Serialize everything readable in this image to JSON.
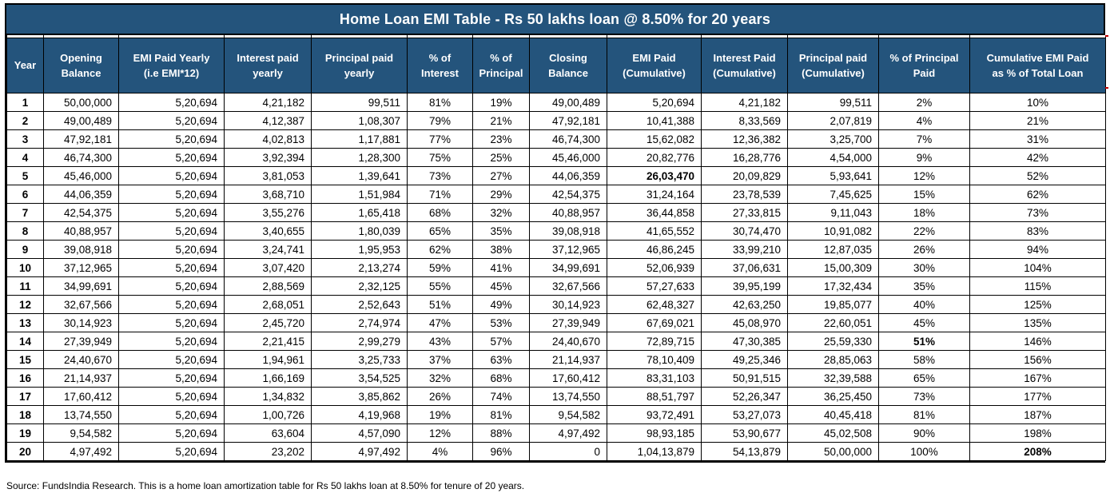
{
  "title": "Home Loan EMI Table - Rs 50 lakhs loan @ 8.50% for 20 years",
  "source_note": "Source: FundsIndia Research. This is a home loan amortization table for Rs 50 lakhs loan at 8.50% for tenure of 20 years.",
  "colors": {
    "header_bg": "#24547C",
    "header_text": "#FFFFFF",
    "year_text": "#44546A",
    "body_text": "#000000",
    "border": "#000000",
    "edge_artifact": "#C00000"
  },
  "chart_data": {
    "type": "table",
    "columns": [
      {
        "label": "Year"
      },
      {
        "label": "Opening\nBalance"
      },
      {
        "label": "EMI Paid Yearly\n(i.e EMI*12)"
      },
      {
        "label": "Interest paid\nyearly"
      },
      {
        "label": "Principal paid\nyearly"
      },
      {
        "label": "% of\nInterest"
      },
      {
        "label": "% of\nPrincipal"
      },
      {
        "label": "Closing\nBalance"
      },
      {
        "label": "EMI Paid\n(Cumulative)"
      },
      {
        "label": "Interest Paid\n(Cumulative)"
      },
      {
        "label": "Principal paid\n(Cumulative)"
      },
      {
        "label": "% of Principal\nPaid"
      },
      {
        "label": "Cumulative EMI Paid\nas % of Total Loan"
      }
    ],
    "rows": [
      [
        "1",
        "50,00,000",
        "5,20,694",
        "4,21,182",
        "99,511",
        "81%",
        "19%",
        "49,00,489",
        "5,20,694",
        "4,21,182",
        "99,511",
        "2%",
        "10%"
      ],
      [
        "2",
        "49,00,489",
        "5,20,694",
        "4,12,387",
        "1,08,307",
        "79%",
        "21%",
        "47,92,181",
        "10,41,388",
        "8,33,569",
        "2,07,819",
        "4%",
        "21%"
      ],
      [
        "3",
        "47,92,181",
        "5,20,694",
        "4,02,813",
        "1,17,881",
        "77%",
        "23%",
        "46,74,300",
        "15,62,082",
        "12,36,382",
        "3,25,700",
        "7%",
        "31%"
      ],
      [
        "4",
        "46,74,300",
        "5,20,694",
        "3,92,394",
        "1,28,300",
        "75%",
        "25%",
        "45,46,000",
        "20,82,776",
        "16,28,776",
        "4,54,000",
        "9%",
        "42%"
      ],
      [
        "5",
        "45,46,000",
        "5,20,694",
        "3,81,053",
        "1,39,641",
        "73%",
        "27%",
        "44,06,359",
        "26,03,470",
        "20,09,829",
        "5,93,641",
        "12%",
        "52%"
      ],
      [
        "6",
        "44,06,359",
        "5,20,694",
        "3,68,710",
        "1,51,984",
        "71%",
        "29%",
        "42,54,375",
        "31,24,164",
        "23,78,539",
        "7,45,625",
        "15%",
        "62%"
      ],
      [
        "7",
        "42,54,375",
        "5,20,694",
        "3,55,276",
        "1,65,418",
        "68%",
        "32%",
        "40,88,957",
        "36,44,858",
        "27,33,815",
        "9,11,043",
        "18%",
        "73%"
      ],
      [
        "8",
        "40,88,957",
        "5,20,694",
        "3,40,655",
        "1,80,039",
        "65%",
        "35%",
        "39,08,918",
        "41,65,552",
        "30,74,470",
        "10,91,082",
        "22%",
        "83%"
      ],
      [
        "9",
        "39,08,918",
        "5,20,694",
        "3,24,741",
        "1,95,953",
        "62%",
        "38%",
        "37,12,965",
        "46,86,245",
        "33,99,210",
        "12,87,035",
        "26%",
        "94%"
      ],
      [
        "10",
        "37,12,965",
        "5,20,694",
        "3,07,420",
        "2,13,274",
        "59%",
        "41%",
        "34,99,691",
        "52,06,939",
        "37,06,631",
        "15,00,309",
        "30%",
        "104%"
      ],
      [
        "11",
        "34,99,691",
        "5,20,694",
        "2,88,569",
        "2,32,125",
        "55%",
        "45%",
        "32,67,566",
        "57,27,633",
        "39,95,199",
        "17,32,434",
        "35%",
        "115%"
      ],
      [
        "12",
        "32,67,566",
        "5,20,694",
        "2,68,051",
        "2,52,643",
        "51%",
        "49%",
        "30,14,923",
        "62,48,327",
        "42,63,250",
        "19,85,077",
        "40%",
        "125%"
      ],
      [
        "13",
        "30,14,923",
        "5,20,694",
        "2,45,720",
        "2,74,974",
        "47%",
        "53%",
        "27,39,949",
        "67,69,021",
        "45,08,970",
        "22,60,051",
        "45%",
        "135%"
      ],
      [
        "14",
        "27,39,949",
        "5,20,694",
        "2,21,415",
        "2,99,279",
        "43%",
        "57%",
        "24,40,670",
        "72,89,715",
        "47,30,385",
        "25,59,330",
        "51%",
        "146%"
      ],
      [
        "15",
        "24,40,670",
        "5,20,694",
        "1,94,961",
        "3,25,733",
        "37%",
        "63%",
        "21,14,937",
        "78,10,409",
        "49,25,346",
        "28,85,063",
        "58%",
        "156%"
      ],
      [
        "16",
        "21,14,937",
        "5,20,694",
        "1,66,169",
        "3,54,525",
        "32%",
        "68%",
        "17,60,412",
        "83,31,103",
        "50,91,515",
        "32,39,588",
        "65%",
        "167%"
      ],
      [
        "17",
        "17,60,412",
        "5,20,694",
        "1,34,832",
        "3,85,862",
        "26%",
        "74%",
        "13,74,550",
        "88,51,797",
        "52,26,347",
        "36,25,450",
        "73%",
        "177%"
      ],
      [
        "18",
        "13,74,550",
        "5,20,694",
        "1,00,726",
        "4,19,968",
        "19%",
        "81%",
        "9,54,582",
        "93,72,491",
        "53,27,073",
        "40,45,418",
        "81%",
        "187%"
      ],
      [
        "19",
        "9,54,582",
        "5,20,694",
        "63,604",
        "4,57,090",
        "12%",
        "88%",
        "4,97,492",
        "98,93,185",
        "53,90,677",
        "45,02,508",
        "90%",
        "198%"
      ],
      [
        "20",
        "4,97,492",
        "5,20,694",
        "23,202",
        "4,97,492",
        "4%",
        "96%",
        "0",
        "1,04,13,879",
        "54,13,879",
        "50,00,000",
        "100%",
        "208%"
      ]
    ],
    "bold_cells": [
      [
        4,
        8
      ],
      [
        13,
        11
      ],
      [
        19,
        12
      ]
    ],
    "title": "Home Loan EMI Table - Rs 50 lakhs loan @ 8.50% for 20 years"
  }
}
